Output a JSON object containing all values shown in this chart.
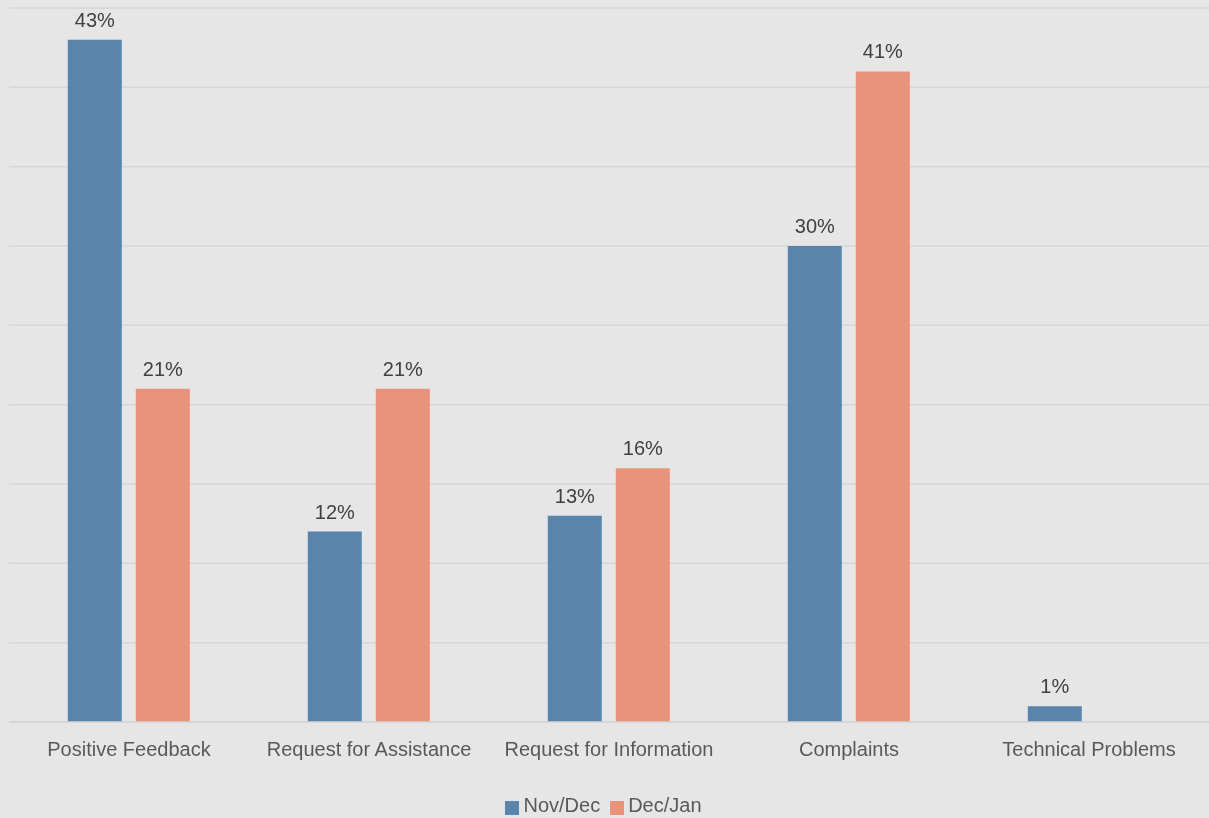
{
  "chart_data": {
    "type": "bar",
    "categories": [
      "Positive Feedback",
      "Request for Assistance",
      "Request for Information",
      "Complaints",
      "Technical Problems"
    ],
    "series": [
      {
        "name": "Nov/Dec",
        "color": "#5b84ad",
        "values": [
          43,
          12,
          13,
          30,
          1
        ],
        "value_labels": [
          "43%",
          "12%",
          "13%",
          "30%",
          "1%"
        ]
      },
      {
        "name": "Dec/Jan",
        "color": "#e9937a",
        "values": [
          21,
          21,
          16,
          41,
          null
        ],
        "value_labels": [
          "21%",
          "21%",
          "16%",
          "41%",
          null
        ]
      }
    ],
    "ylim": [
      0,
      45
    ],
    "yticks": [
      {
        "value": 0,
        "label": null
      },
      {
        "value": 5,
        "label": null
      },
      {
        "value": 10,
        "label": null
      },
      {
        "value": 15,
        "label": null
      },
      {
        "value": 20,
        "label": null
      },
      {
        "value": 25,
        "label": null
      },
      {
        "value": 30,
        "label": null
      },
      {
        "value": 35,
        "label": null
      },
      {
        "value": 40,
        "label": null
      },
      {
        "value": 45,
        "label": null
      }
    ],
    "grid": "y",
    "legend": "bottom",
    "tick_labels": "x"
  }
}
